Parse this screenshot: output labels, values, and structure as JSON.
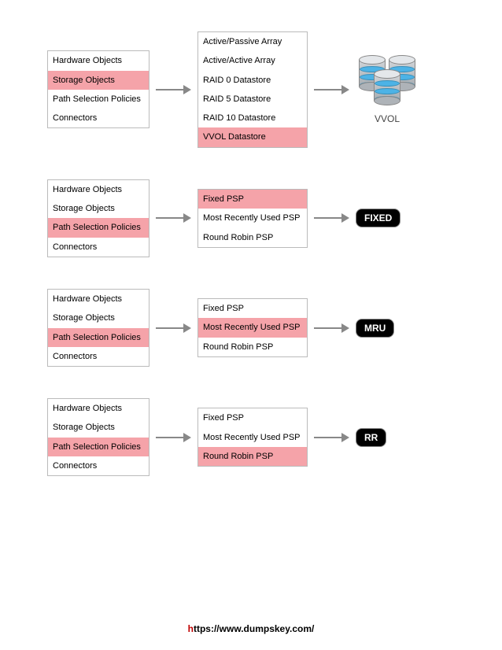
{
  "colors": {
    "highlight": "#f5a3a9",
    "border": "#bbbbbb",
    "arrow": "#888888",
    "badge_bg": "#000000",
    "badge_fg": "#ffffff",
    "cyl_stripe": "#4db3e6",
    "footer_accent": "#c00000"
  },
  "leftList": [
    "Hardware Objects",
    "Storage Objects",
    "Path Selection Policies",
    "Connectors"
  ],
  "rows": [
    {
      "leftSelected": 1,
      "midItems": [
        "Active/Passive Array",
        "Active/Active Array",
        "RAID 0 Datastore",
        "RAID 5 Datastore",
        "RAID 10 Datastore",
        "VVOL Datastore"
      ],
      "midSelected": 5,
      "resultType": "vvol",
      "resultLabel": "VVOL"
    },
    {
      "leftSelected": 2,
      "midItems": [
        "Fixed PSP",
        "Most Recently Used PSP",
        "Round Robin PSP"
      ],
      "midSelected": 0,
      "resultType": "badge",
      "resultLabel": "FIXED"
    },
    {
      "leftSelected": 2,
      "midItems": [
        "Fixed PSP",
        "Most Recently Used PSP",
        "Round Robin PSP"
      ],
      "midSelected": 1,
      "resultType": "badge",
      "resultLabel": "MRU"
    },
    {
      "leftSelected": 2,
      "midItems": [
        "Fixed PSP",
        "Most Recently Used PSP",
        "Round Robin PSP"
      ],
      "midSelected": 2,
      "resultType": "badge",
      "resultLabel": "RR"
    }
  ],
  "footer": {
    "prefix": "h",
    "rest": "ttps://www.dumpskey.com/"
  }
}
